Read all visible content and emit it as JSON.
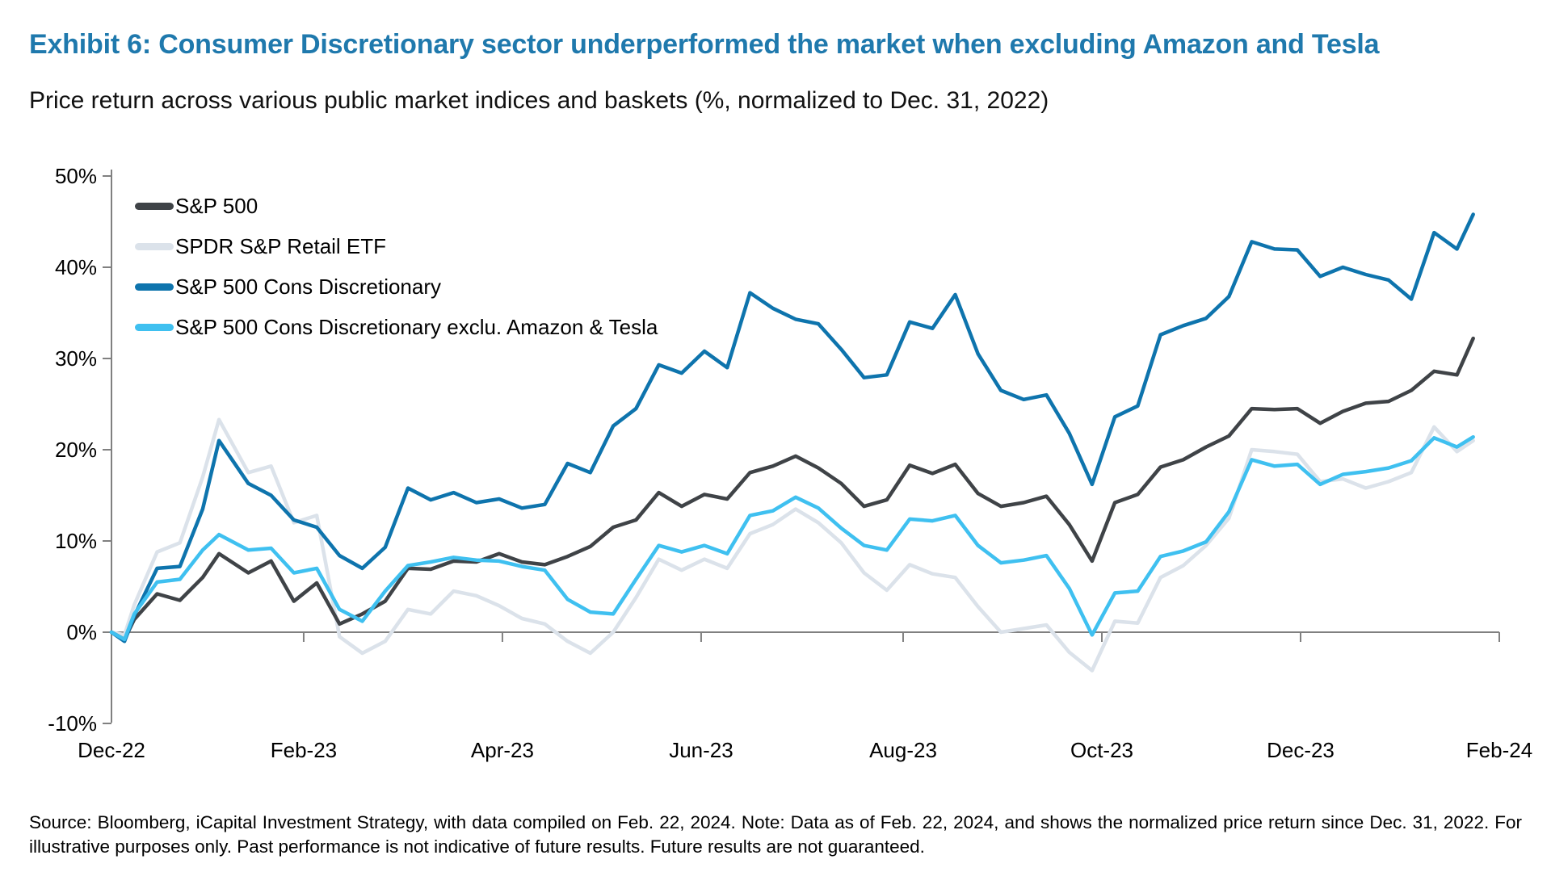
{
  "page": {
    "background": "#ffffff"
  },
  "header": {
    "title": "Exhibit 6: Consumer Discretionary sector underperformed the market when excluding Amazon and Tesla",
    "title_color": "#1f79ad",
    "subtitle": "Price return across various public market indices and baskets (%, normalized to Dec. 31, 2022)"
  },
  "footer": {
    "source_note": "Source: Bloomberg, iCapital Investment Strategy, with data compiled on Feb. 22, 2024. Note: Data as of Feb. 22, 2024, and shows the normalized price return since Dec. 31, 2022. For illustrative purposes only. Past performance is not indicative of future results. Future results are not guaranteed."
  },
  "chart_data": {
    "type": "line",
    "title": "Price return across various public market indices and baskets (%, normalized to Dec. 31, 2022)",
    "xlabel": "",
    "ylabel": "",
    "ylim": [
      -10,
      50
    ],
    "x_unit": "days since Dec. 31, 2022",
    "x_range_days": [
      0,
      426
    ],
    "grid": "zero-baseline-only",
    "legend_position": "top-left-inside",
    "axis_color": "#808080",
    "y_ticks": [
      {
        "label": "50%",
        "value": 50
      },
      {
        "label": "40%",
        "value": 40
      },
      {
        "label": "30%",
        "value": 30
      },
      {
        "label": "20%",
        "value": 20
      },
      {
        "label": "10%",
        "value": 10
      },
      {
        "label": "0%",
        "value": 0
      },
      {
        "label": "-10%",
        "value": -10
      }
    ],
    "x_ticks": [
      {
        "label": "Dec-22",
        "day": 0
      },
      {
        "label": "Feb-23",
        "day": 59
      },
      {
        "label": "Apr-23",
        "day": 120
      },
      {
        "label": "Jun-23",
        "day": 181
      },
      {
        "label": "Aug-23",
        "day": 243
      },
      {
        "label": "Oct-23",
        "day": 304
      },
      {
        "label": "Dec-23",
        "day": 365
      },
      {
        "label": "Feb-24",
        "day": 426
      }
    ],
    "days": [
      0,
      4,
      7,
      14,
      21,
      28,
      33,
      42,
      49,
      56,
      63,
      70,
      77,
      84,
      91,
      98,
      105,
      112,
      119,
      126,
      133,
      140,
      147,
      154,
      161,
      168,
      175,
      182,
      189,
      196,
      203,
      210,
      217,
      224,
      231,
      238,
      245,
      252,
      259,
      266,
      273,
      280,
      287,
      294,
      301,
      308,
      315,
      322,
      329,
      336,
      343,
      350,
      357,
      364,
      371,
      378,
      385,
      392,
      399,
      406,
      413,
      418
    ],
    "series": [
      {
        "name": "S&P 500",
        "color": "#3f4347",
        "values": [
          0,
          -0.8,
          1.4,
          4.2,
          3.5,
          6.0,
          8.6,
          6.5,
          7.8,
          3.4,
          5.4,
          0.9,
          2.0,
          3.4,
          7.0,
          6.9,
          7.8,
          7.7,
          8.6,
          7.7,
          7.4,
          8.3,
          9.4,
          11.5,
          12.3,
          15.3,
          13.8,
          15.1,
          14.6,
          17.5,
          18.2,
          19.3,
          18.0,
          16.3,
          13.8,
          14.5,
          18.3,
          17.4,
          18.4,
          15.2,
          13.8,
          14.2,
          14.9,
          11.8,
          7.8,
          14.2,
          15.1,
          18.1,
          18.9,
          20.3,
          21.5,
          24.5,
          24.4,
          24.5,
          22.9,
          24.2,
          25.1,
          25.3,
          26.5,
          28.6,
          28.2,
          32.2
        ]
      },
      {
        "name": "SPDR S&P Retail ETF",
        "color": "#dbe2ea",
        "values": [
          0,
          -0.3,
          3.0,
          8.8,
          9.8,
          17.0,
          23.3,
          17.5,
          18.2,
          12.0,
          12.8,
          -0.5,
          -2.3,
          -1.0,
          2.5,
          2.0,
          4.5,
          4.0,
          2.9,
          1.5,
          0.9,
          -1.0,
          -2.3,
          0.0,
          3.8,
          8.0,
          6.8,
          8.0,
          7.0,
          10.8,
          11.8,
          13.5,
          12.0,
          9.8,
          6.5,
          4.6,
          7.4,
          6.4,
          6.0,
          2.8,
          0.0,
          0.4,
          0.8,
          -2.2,
          -4.2,
          1.2,
          1.0,
          6.0,
          7.3,
          9.5,
          12.5,
          20.0,
          19.8,
          19.5,
          16.5,
          16.8,
          15.8,
          16.5,
          17.5,
          22.5,
          19.8,
          21.0
        ]
      },
      {
        "name": "S&P 500 Cons Discretionary",
        "color": "#0e74ad",
        "values": [
          0,
          -1.0,
          1.8,
          7.0,
          7.2,
          13.5,
          21.0,
          16.3,
          15.0,
          12.3,
          11.5,
          8.4,
          7.0,
          9.3,
          15.8,
          14.5,
          15.3,
          14.2,
          14.6,
          13.6,
          14.0,
          18.5,
          17.5,
          22.6,
          24.5,
          29.3,
          28.4,
          30.8,
          29.0,
          37.2,
          35.5,
          34.3,
          33.8,
          31.0,
          27.9,
          28.2,
          34.0,
          33.3,
          37.0,
          30.5,
          26.5,
          25.5,
          26.0,
          21.8,
          16.2,
          23.6,
          24.8,
          32.6,
          33.6,
          34.4,
          36.8,
          42.8,
          42.0,
          41.9,
          39.0,
          40.0,
          39.2,
          38.6,
          36.5,
          43.8,
          42.0,
          45.8
        ]
      },
      {
        "name": "S&P 500 Cons Discretionary exclu. Amazon & Tesla",
        "color": "#3fc0f0",
        "values": [
          0,
          -0.8,
          2.0,
          5.5,
          5.8,
          9.0,
          10.7,
          9.0,
          9.2,
          6.5,
          7.0,
          2.5,
          1.2,
          4.5,
          7.3,
          7.7,
          8.2,
          7.9,
          7.8,
          7.2,
          6.8,
          3.6,
          2.2,
          2.0,
          5.8,
          9.5,
          8.8,
          9.5,
          8.6,
          12.8,
          13.3,
          14.8,
          13.6,
          11.4,
          9.5,
          9.0,
          12.4,
          12.2,
          12.8,
          9.5,
          7.6,
          7.9,
          8.4,
          4.8,
          -0.3,
          4.3,
          4.5,
          8.3,
          8.9,
          9.9,
          13.2,
          18.9,
          18.2,
          18.4,
          16.2,
          17.3,
          17.6,
          18.0,
          18.8,
          21.3,
          20.3,
          21.4
        ]
      }
    ]
  }
}
